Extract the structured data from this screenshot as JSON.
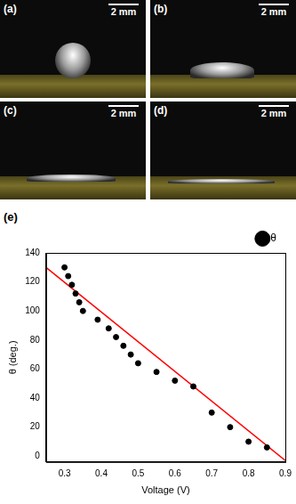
{
  "panels": [
    {
      "label": "(a)",
      "scale_bar": "2 mm"
    },
    {
      "label": "(b)",
      "scale_bar": "2 mm"
    },
    {
      "label": "(c)",
      "scale_bar": "2 mm"
    },
    {
      "label": "(d)",
      "scale_bar": "2 mm"
    }
  ],
  "chart_label": "(e)",
  "chart_data": {
    "type": "scatter",
    "x_label": "Voltage (V)",
    "y_label": "θ (deg.)",
    "xlim": [
      0.25,
      0.9
    ],
    "xticks": [
      0.3,
      0.4,
      0.5,
      0.6,
      0.7,
      0.8,
      0.9
    ],
    "ylim": [
      -4,
      140
    ],
    "yticks": [
      0,
      20,
      40,
      60,
      80,
      100,
      120,
      140
    ],
    "grid": false,
    "legend": "upper right",
    "series": [
      {
        "name": "θ",
        "type": "scatter",
        "marker": "circle",
        "color": "#000000",
        "x": [
          0.3,
          0.31,
          0.32,
          0.33,
          0.34,
          0.35,
          0.39,
          0.42,
          0.44,
          0.46,
          0.48,
          0.5,
          0.55,
          0.6,
          0.65,
          0.7,
          0.75,
          0.8,
          0.85
        ],
        "values": [
          130,
          124,
          118,
          112,
          106,
          100,
          94,
          88,
          82,
          76,
          70,
          64,
          58,
          52,
          48,
          30,
          20,
          10,
          6
        ]
      },
      {
        "type": "line",
        "line_style": "solid",
        "color": "#ff0000",
        "x": [
          0.25,
          0.9
        ],
        "values": [
          130,
          -3
        ]
      }
    ]
  }
}
